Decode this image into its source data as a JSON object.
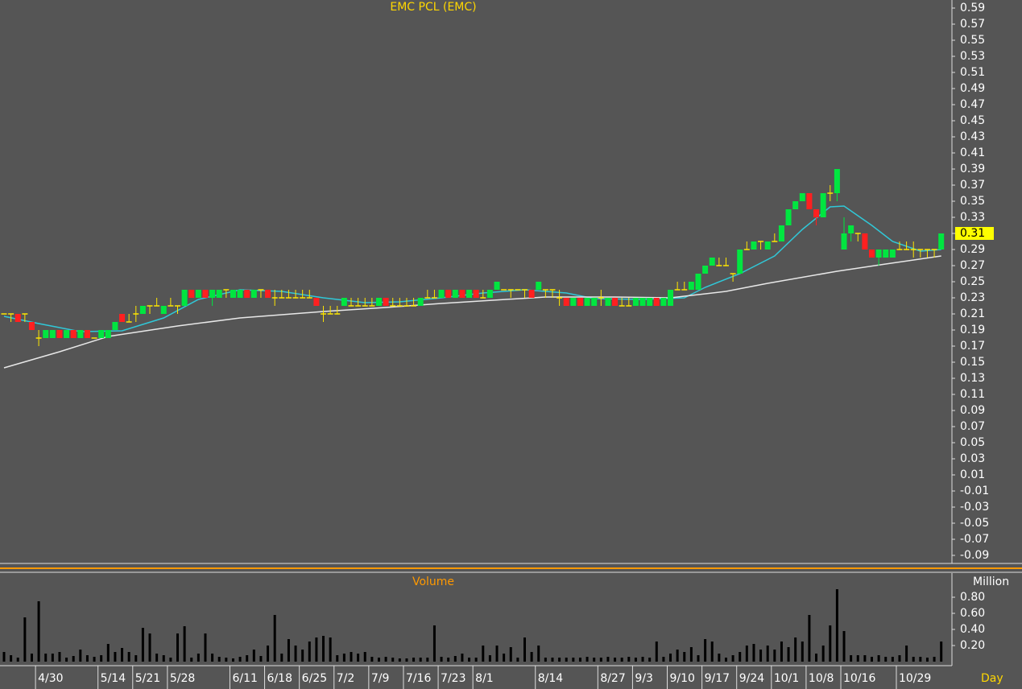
{
  "chart_data": [
    {
      "type": "candlestick",
      "title": "EMC PCL (EMC)",
      "ylim": [
        -0.1,
        0.6
      ],
      "yticks": [
        0.59,
        0.57,
        0.55,
        0.53,
        0.51,
        0.49,
        0.47,
        0.45,
        0.43,
        0.41,
        0.39,
        0.37,
        0.35,
        0.33,
        0.31,
        0.29,
        0.27,
        0.25,
        0.23,
        0.21,
        0.19,
        0.17,
        0.15,
        0.13,
        0.11,
        0.09,
        0.07,
        0.05,
        0.03,
        0.01,
        -0.01,
        -0.03,
        -0.05,
        -0.07,
        -0.09
      ],
      "last_price": 0.31,
      "last_price_color": "#ffff00",
      "up_color": "#00e640",
      "down_color": "#ff2020",
      "doji_color": "#ffe600",
      "candles": [
        [
          0.21,
          0.21,
          0.21,
          0.21
        ],
        [
          0.21,
          0.21,
          0.2,
          0.21
        ],
        [
          0.21,
          0.21,
          0.2,
          0.2
        ],
        [
          0.21,
          0.21,
          0.2,
          0.21
        ],
        [
          0.2,
          0.2,
          0.19,
          0.19
        ],
        [
          0.18,
          0.19,
          0.17,
          0.18
        ],
        [
          0.18,
          0.19,
          0.18,
          0.19
        ],
        [
          0.18,
          0.19,
          0.18,
          0.19
        ],
        [
          0.19,
          0.19,
          0.18,
          0.18
        ],
        [
          0.18,
          0.19,
          0.18,
          0.19
        ],
        [
          0.19,
          0.19,
          0.18,
          0.18
        ],
        [
          0.18,
          0.19,
          0.18,
          0.19
        ],
        [
          0.19,
          0.19,
          0.18,
          0.18
        ],
        [
          0.18,
          0.18,
          0.18,
          0.18
        ],
        [
          0.18,
          0.19,
          0.18,
          0.19
        ],
        [
          0.18,
          0.19,
          0.18,
          0.19
        ],
        [
          0.19,
          0.2,
          0.19,
          0.2
        ],
        [
          0.21,
          0.21,
          0.2,
          0.2
        ],
        [
          0.2,
          0.21,
          0.2,
          0.2
        ],
        [
          0.21,
          0.22,
          0.2,
          0.21
        ],
        [
          0.21,
          0.22,
          0.21,
          0.22
        ],
        [
          0.22,
          0.22,
          0.21,
          0.22
        ],
        [
          0.22,
          0.23,
          0.22,
          0.22
        ],
        [
          0.21,
          0.22,
          0.21,
          0.22
        ],
        [
          0.22,
          0.23,
          0.22,
          0.22
        ],
        [
          0.22,
          0.22,
          0.21,
          0.22
        ],
        [
          0.22,
          0.24,
          0.22,
          0.24
        ],
        [
          0.24,
          0.24,
          0.23,
          0.23
        ],
        [
          0.23,
          0.24,
          0.23,
          0.24
        ],
        [
          0.24,
          0.24,
          0.23,
          0.23
        ],
        [
          0.23,
          0.24,
          0.22,
          0.24
        ],
        [
          0.23,
          0.24,
          0.23,
          0.24
        ],
        [
          0.24,
          0.24,
          0.23,
          0.24
        ],
        [
          0.23,
          0.24,
          0.23,
          0.24
        ],
        [
          0.23,
          0.24,
          0.23,
          0.24
        ],
        [
          0.24,
          0.24,
          0.23,
          0.23
        ],
        [
          0.23,
          0.24,
          0.23,
          0.24
        ],
        [
          0.24,
          0.24,
          0.23,
          0.24
        ],
        [
          0.24,
          0.24,
          0.23,
          0.23
        ],
        [
          0.23,
          0.24,
          0.22,
          0.23
        ],
        [
          0.23,
          0.24,
          0.23,
          0.23
        ],
        [
          0.23,
          0.24,
          0.23,
          0.23
        ],
        [
          0.23,
          0.24,
          0.23,
          0.23
        ],
        [
          0.23,
          0.24,
          0.23,
          0.23
        ],
        [
          0.23,
          0.24,
          0.23,
          0.23
        ],
        [
          0.23,
          0.23,
          0.22,
          0.22
        ],
        [
          0.21,
          0.22,
          0.2,
          0.21
        ],
        [
          0.21,
          0.22,
          0.21,
          0.21
        ],
        [
          0.21,
          0.22,
          0.21,
          0.21
        ],
        [
          0.22,
          0.23,
          0.22,
          0.23
        ],
        [
          0.22,
          0.23,
          0.22,
          0.22
        ],
        [
          0.22,
          0.23,
          0.22,
          0.22
        ],
        [
          0.22,
          0.23,
          0.22,
          0.22
        ],
        [
          0.22,
          0.23,
          0.22,
          0.22
        ],
        [
          0.22,
          0.23,
          0.22,
          0.23
        ],
        [
          0.23,
          0.23,
          0.22,
          0.22
        ],
        [
          0.22,
          0.23,
          0.22,
          0.22
        ],
        [
          0.22,
          0.23,
          0.22,
          0.22
        ],
        [
          0.22,
          0.23,
          0.22,
          0.22
        ],
        [
          0.22,
          0.23,
          0.22,
          0.22
        ],
        [
          0.22,
          0.23,
          0.22,
          0.23
        ],
        [
          0.23,
          0.24,
          0.23,
          0.23
        ],
        [
          0.23,
          0.24,
          0.23,
          0.23
        ],
        [
          0.23,
          0.24,
          0.23,
          0.24
        ],
        [
          0.24,
          0.24,
          0.23,
          0.23
        ],
        [
          0.23,
          0.24,
          0.23,
          0.24
        ],
        [
          0.24,
          0.24,
          0.23,
          0.23
        ],
        [
          0.23,
          0.24,
          0.23,
          0.24
        ],
        [
          0.24,
          0.24,
          0.23,
          0.23
        ],
        [
          0.23,
          0.24,
          0.23,
          0.23
        ],
        [
          0.23,
          0.24,
          0.23,
          0.24
        ],
        [
          0.24,
          0.25,
          0.24,
          0.25
        ],
        [
          0.24,
          0.24,
          0.24,
          0.24
        ],
        [
          0.24,
          0.24,
          0.23,
          0.24
        ],
        [
          0.24,
          0.24,
          0.24,
          0.24
        ],
        [
          0.24,
          0.24,
          0.23,
          0.24
        ],
        [
          0.24,
          0.24,
          0.23,
          0.23
        ],
        [
          0.24,
          0.25,
          0.24,
          0.25
        ],
        [
          0.24,
          0.24,
          0.23,
          0.24
        ],
        [
          0.24,
          0.24,
          0.23,
          0.24
        ],
        [
          0.23,
          0.24,
          0.22,
          0.23
        ],
        [
          0.23,
          0.23,
          0.22,
          0.22
        ],
        [
          0.22,
          0.23,
          0.22,
          0.23
        ],
        [
          0.23,
          0.23,
          0.22,
          0.22
        ],
        [
          0.22,
          0.23,
          0.22,
          0.23
        ],
        [
          0.22,
          0.23,
          0.22,
          0.23
        ],
        [
          0.23,
          0.24,
          0.22,
          0.23
        ],
        [
          0.22,
          0.23,
          0.22,
          0.23
        ],
        [
          0.23,
          0.23,
          0.22,
          0.22
        ],
        [
          0.22,
          0.23,
          0.22,
          0.22
        ],
        [
          0.22,
          0.23,
          0.22,
          0.22
        ],
        [
          0.22,
          0.23,
          0.22,
          0.23
        ],
        [
          0.22,
          0.23,
          0.22,
          0.23
        ],
        [
          0.22,
          0.23,
          0.22,
          0.23
        ],
        [
          0.23,
          0.23,
          0.22,
          0.22
        ],
        [
          0.22,
          0.23,
          0.22,
          0.23
        ],
        [
          0.22,
          0.24,
          0.22,
          0.24
        ],
        [
          0.24,
          0.25,
          0.24,
          0.24
        ],
        [
          0.24,
          0.25,
          0.24,
          0.24
        ],
        [
          0.24,
          0.25,
          0.24,
          0.25
        ],
        [
          0.24,
          0.26,
          0.24,
          0.26
        ],
        [
          0.26,
          0.27,
          0.26,
          0.27
        ],
        [
          0.27,
          0.28,
          0.27,
          0.28
        ],
        [
          0.27,
          0.28,
          0.27,
          0.27
        ],
        [
          0.27,
          0.28,
          0.27,
          0.27
        ],
        [
          0.26,
          0.26,
          0.25,
          0.26
        ],
        [
          0.26,
          0.29,
          0.26,
          0.29
        ],
        [
          0.29,
          0.3,
          0.29,
          0.29
        ],
        [
          0.29,
          0.3,
          0.29,
          0.3
        ],
        [
          0.3,
          0.3,
          0.29,
          0.3
        ],
        [
          0.29,
          0.3,
          0.29,
          0.3
        ],
        [
          0.3,
          0.31,
          0.3,
          0.3
        ],
        [
          0.3,
          0.32,
          0.3,
          0.32
        ],
        [
          0.32,
          0.34,
          0.32,
          0.34
        ],
        [
          0.34,
          0.35,
          0.34,
          0.35
        ],
        [
          0.35,
          0.36,
          0.35,
          0.36
        ],
        [
          0.36,
          0.36,
          0.34,
          0.34
        ],
        [
          0.34,
          0.34,
          0.32,
          0.33
        ],
        [
          0.33,
          0.36,
          0.33,
          0.36
        ],
        [
          0.36,
          0.37,
          0.35,
          0.36
        ],
        [
          0.36,
          0.39,
          0.35,
          0.39
        ],
        [
          0.29,
          0.33,
          0.29,
          0.31
        ],
        [
          0.31,
          0.32,
          0.3,
          0.32
        ],
        [
          0.31,
          0.31,
          0.3,
          0.31
        ],
        [
          0.31,
          0.31,
          0.29,
          0.29
        ],
        [
          0.29,
          0.29,
          0.28,
          0.28
        ],
        [
          0.28,
          0.29,
          0.27,
          0.29
        ],
        [
          0.28,
          0.29,
          0.28,
          0.29
        ],
        [
          0.28,
          0.29,
          0.28,
          0.29
        ],
        [
          0.29,
          0.3,
          0.29,
          0.29
        ],
        [
          0.29,
          0.3,
          0.29,
          0.29
        ],
        [
          0.29,
          0.3,
          0.28,
          0.29
        ],
        [
          0.29,
          0.29,
          0.28,
          0.29
        ],
        [
          0.29,
          0.29,
          0.28,
          0.29
        ],
        [
          0.29,
          0.29,
          0.28,
          0.29
        ],
        [
          0.29,
          0.31,
          0.29,
          0.31
        ]
      ],
      "lines": [
        {
          "color": "#30c8d8",
          "x": [
            0,
            5,
            11,
            17,
            23,
            28,
            34,
            40,
            46,
            52,
            57,
            63,
            69,
            75,
            81,
            85,
            92,
            98,
            101,
            106,
            111,
            115,
            119,
            121,
            125,
            128,
            132,
            135
          ],
          "values": [
            0.207,
            0.198,
            0.188,
            0.189,
            0.205,
            0.228,
            0.24,
            0.238,
            0.23,
            0.224,
            0.225,
            0.23,
            0.236,
            0.24,
            0.236,
            0.229,
            0.228,
            0.23,
            0.243,
            0.26,
            0.282,
            0.315,
            0.343,
            0.344,
            0.32,
            0.3,
            0.288,
            0.29
          ]
        },
        {
          "color": "#e8e8e8",
          "x": [
            0,
            8,
            15,
            25,
            34,
            46,
            55,
            63,
            78,
            88,
            96,
            104,
            110,
            120,
            127,
            135
          ],
          "values": [
            0.143,
            0.163,
            0.182,
            0.195,
            0.205,
            0.213,
            0.218,
            0.223,
            0.231,
            0.231,
            0.23,
            0.238,
            0.248,
            0.263,
            0.272,
            0.282
          ]
        }
      ]
    },
    {
      "type": "bar",
      "title": "Volume",
      "y_unit": "Million",
      "x_label": "Day",
      "color": "#000000",
      "ylim": [
        0,
        1.1
      ],
      "yticks": [
        {
          "value": 0.8,
          "label": "0.80"
        },
        {
          "value": 0.6,
          "label": "0.60"
        },
        {
          "value": 0.4,
          "label": "0.40"
        },
        {
          "value": 0.2,
          "label": "0.20"
        }
      ],
      "categories": [
        null,
        null,
        null,
        null,
        null,
        "4/30",
        null,
        null,
        null,
        null,
        null,
        null,
        null,
        null,
        "5/14",
        null,
        null,
        null,
        null,
        "5/21",
        null,
        null,
        null,
        null,
        "5/28",
        null,
        null,
        null,
        null,
        null,
        null,
        null,
        null,
        "6/11",
        null,
        null,
        null,
        null,
        "6/18",
        null,
        null,
        null,
        null,
        "6/25",
        null,
        null,
        null,
        null,
        "7/2",
        null,
        null,
        null,
        null,
        "7/9",
        null,
        null,
        null,
        null,
        "7/16",
        null,
        null,
        null,
        null,
        "7/23",
        null,
        null,
        null,
        null,
        "8/1",
        null,
        null,
        null,
        null,
        null,
        null,
        null,
        null,
        "8/14",
        null,
        null,
        null,
        null,
        null,
        null,
        null,
        null,
        "8/27",
        null,
        null,
        null,
        null,
        "9/3",
        null,
        null,
        null,
        null,
        "9/10",
        null,
        null,
        null,
        null,
        "9/17",
        null,
        null,
        null,
        null,
        "9/24",
        null,
        null,
        null,
        null,
        "10/1",
        null,
        null,
        null,
        null,
        "10/8",
        null,
        null,
        null,
        null,
        "10/16",
        null,
        null,
        null,
        null,
        null,
        null,
        null,
        "10/29",
        null,
        null,
        null,
        null,
        null,
        null
      ],
      "values": [
        0.12,
        0.08,
        0.05,
        0.55,
        0.1,
        0.75,
        0.1,
        0.1,
        0.12,
        0.05,
        0.07,
        0.15,
        0.08,
        0.06,
        0.08,
        0.22,
        0.12,
        0.17,
        0.12,
        0.08,
        0.42,
        0.35,
        0.1,
        0.08,
        0.05,
        0.35,
        0.44,
        0.05,
        0.1,
        0.35,
        0.1,
        0.06,
        0.05,
        0.04,
        0.06,
        0.08,
        0.15,
        0.07,
        0.2,
        0.58,
        0.1,
        0.28,
        0.2,
        0.15,
        0.25,
        0.3,
        0.32,
        0.3,
        0.08,
        0.1,
        0.12,
        0.1,
        0.12,
        0.06,
        0.05,
        0.06,
        0.05,
        0.04,
        0.04,
        0.05,
        0.05,
        0.05,
        0.45,
        0.06,
        0.05,
        0.07,
        0.1,
        0.05,
        0.05,
        0.2,
        0.08,
        0.2,
        0.1,
        0.18,
        0.05,
        0.3,
        0.12,
        0.2,
        0.05,
        0.05,
        0.05,
        0.05,
        0.05,
        0.05,
        0.06,
        0.05,
        0.05,
        0.06,
        0.05,
        0.05,
        0.06,
        0.05,
        0.06,
        0.05,
        0.25,
        0.06,
        0.1,
        0.15,
        0.12,
        0.18,
        0.08,
        0.28,
        0.25,
        0.1,
        0.05,
        0.08,
        0.12,
        0.2,
        0.22,
        0.15,
        0.2,
        0.15,
        0.25,
        0.18,
        0.3,
        0.25,
        0.58,
        0.1,
        0.2,
        0.45,
        0.9,
        0.38,
        0.08,
        0.08,
        0.08,
        0.06,
        0.08,
        0.06,
        0.06,
        0.08,
        0.2,
        0.06,
        0.06,
        0.05,
        0.06,
        0.25
      ]
    }
  ]
}
